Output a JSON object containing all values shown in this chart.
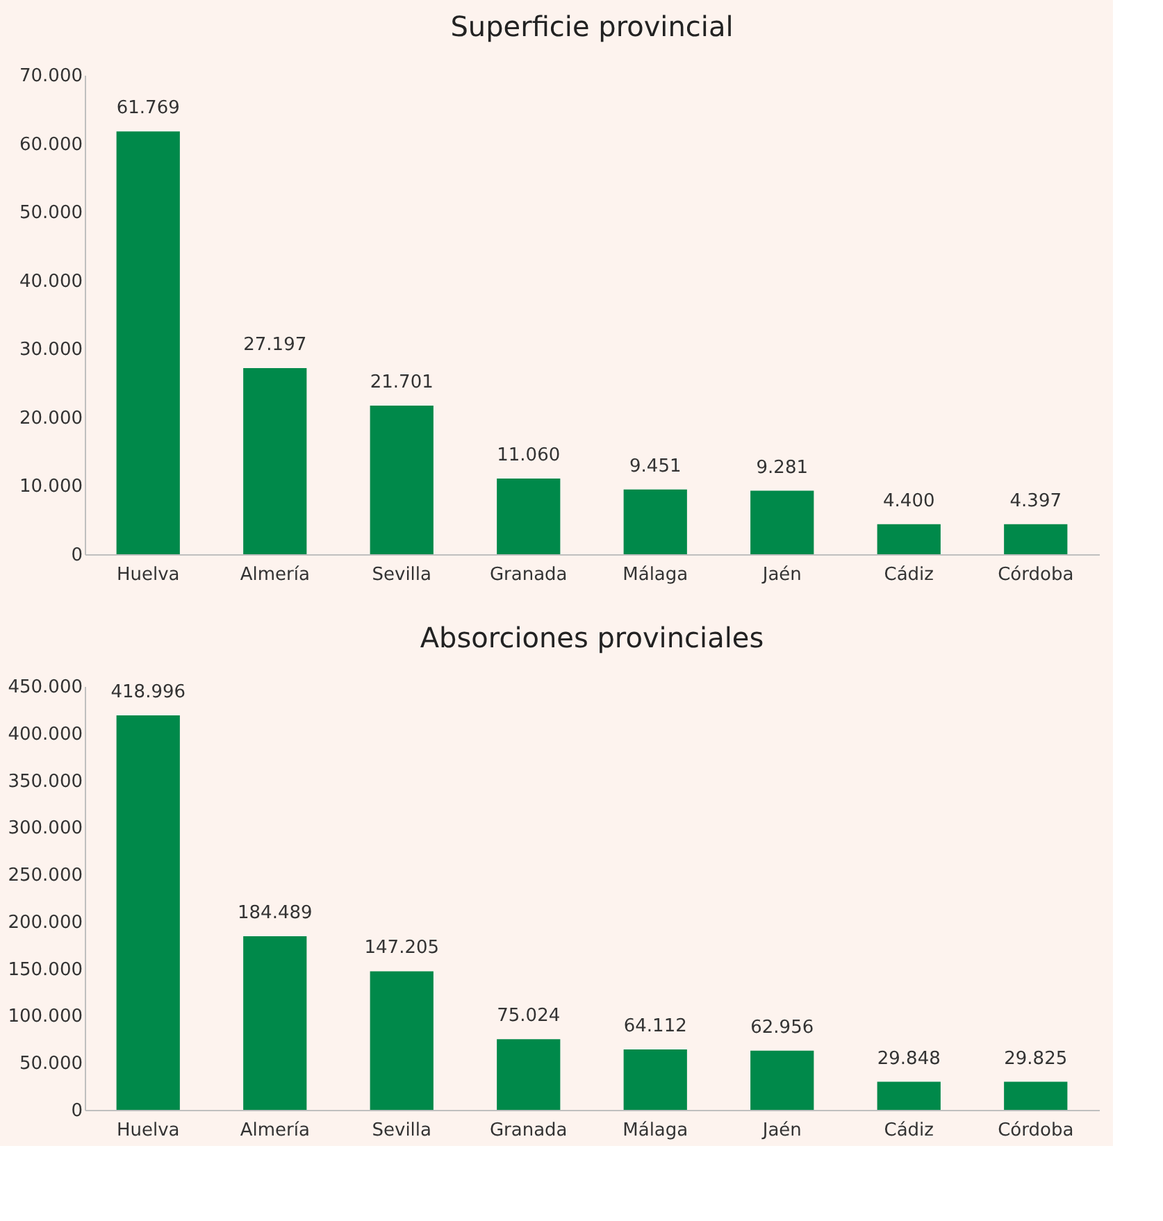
{
  "chart_data": [
    {
      "type": "bar",
      "title": "Superficie provincial",
      "categories": [
        "Huelva",
        "Almería",
        "Sevilla",
        "Granada",
        "Málaga",
        "Jaén",
        "Cádiz",
        "Córdoba"
      ],
      "values": [
        61769,
        27197,
        21701,
        11060,
        9451,
        9281,
        4400,
        4397
      ],
      "value_labels": [
        "61.769",
        "27.197",
        "21.701",
        "11.060",
        "9.451",
        "9.281",
        "4.400",
        "4.397"
      ],
      "color": "#00894a",
      "ylim": [
        0,
        70000
      ],
      "yticks": [
        0,
        {
          "value": 10000,
          "label": "10.000"
        },
        {
          "value": 20000,
          "label": "20.000"
        },
        {
          "value": 30000,
          "label": "30.000"
        },
        {
          "value": 40000,
          "label": "40.000"
        },
        {
          "value": 50000,
          "label": "50.000"
        },
        {
          "value": 60000,
          "label": "60.000"
        },
        {
          "value": 70000,
          "label": "70.000"
        }
      ],
      "grid": false
    },
    {
      "type": "bar",
      "title": "Absorciones provinciales",
      "categories": [
        "Huelva",
        "Almería",
        "Sevilla",
        "Granada",
        "Málaga",
        "Jaén",
        "Cádiz",
        "Córdoba"
      ],
      "values": [
        418996,
        184489,
        147205,
        75024,
        64112,
        62956,
        29848,
        29825
      ],
      "value_labels": [
        "418.996",
        "184.489",
        "147.205",
        "75.024",
        "64.112",
        "62.956",
        "29.848",
        "29.825"
      ],
      "color": "#00894a",
      "ylim": [
        0,
        450000
      ],
      "yticks": [
        0,
        {
          "value": 50000,
          "label": "50.000"
        },
        {
          "value": 100000,
          "label": "100.000"
        },
        {
          "value": 150000,
          "label": "150.000"
        },
        {
          "value": 200000,
          "label": "200.000"
        },
        {
          "value": 250000,
          "label": "250.000"
        },
        {
          "value": 300000,
          "label": "300.000"
        },
        {
          "value": 350000,
          "label": "350.000"
        },
        {
          "value": 400000,
          "label": "400.000"
        },
        {
          "value": 450000,
          "label": "450.000"
        }
      ],
      "grid": false
    }
  ]
}
